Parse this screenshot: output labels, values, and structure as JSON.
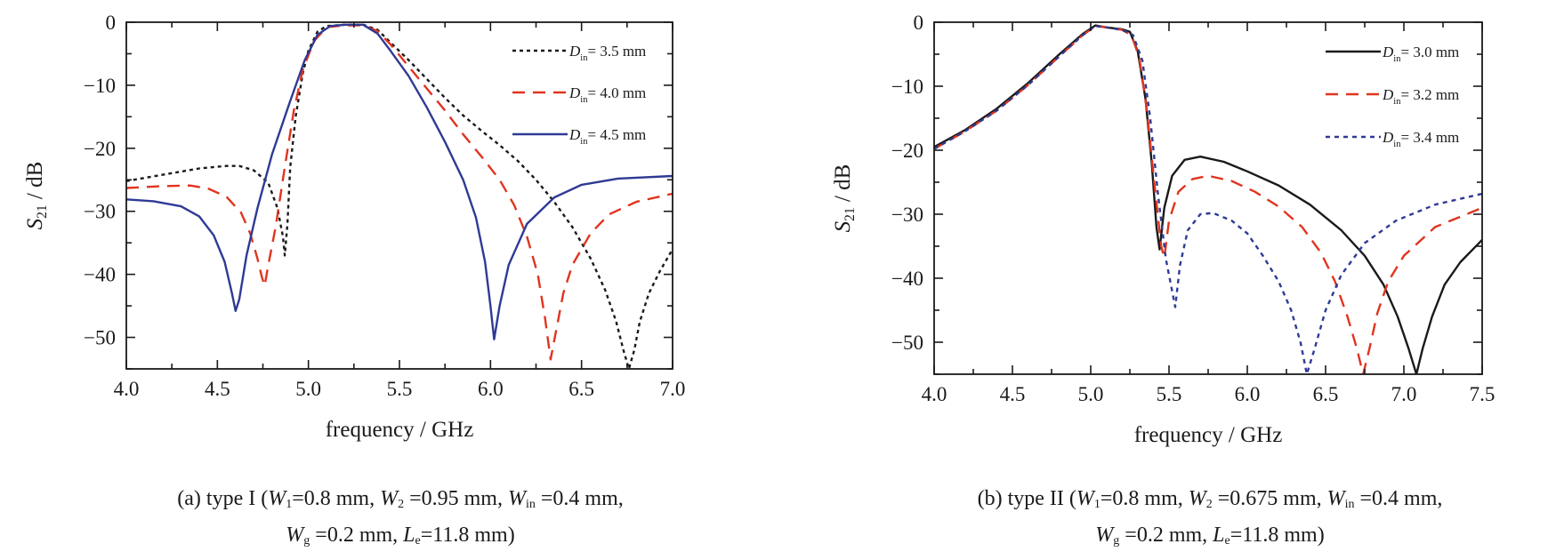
{
  "chart_data": [
    {
      "type": "line",
      "xlabel": "frequency / GHz",
      "ylabel": {
        "sym": "S",
        "sub": "21",
        "rest": " / dB"
      },
      "xlim": [
        4.0,
        7.0
      ],
      "ylim": [
        -55,
        0
      ],
      "xticks": [
        "4.0",
        "4.5",
        "5.0",
        "5.5",
        "6.0",
        "6.5",
        "7.0"
      ],
      "xtick_values": [
        4.0,
        4.5,
        5.0,
        5.5,
        6.0,
        6.5,
        7.0
      ],
      "yticks": [
        "0",
        "−10",
        "−20",
        "−30",
        "−40",
        "−50"
      ],
      "ytick_values": [
        0,
        -10,
        -20,
        -30,
        -40,
        -50
      ],
      "legend_position": "top-right",
      "series": [
        {
          "sym": "D",
          "sub": "in",
          "rest": "= 3.5 mm",
          "color": "#1a1a1a",
          "dash": "4,4",
          "points": [
            [
              4.0,
              -25.2
            ],
            [
              4.2,
              -24.2
            ],
            [
              4.4,
              -23.2
            ],
            [
              4.55,
              -22.8
            ],
            [
              4.62,
              -22.8
            ],
            [
              4.7,
              -23.5
            ],
            [
              4.78,
              -25.5
            ],
            [
              4.83,
              -29.5
            ],
            [
              4.86,
              -34
            ],
            [
              4.87,
              -37
            ],
            [
              4.885,
              -32
            ],
            [
              4.9,
              -23
            ],
            [
              4.93,
              -15
            ],
            [
              4.97,
              -8
            ],
            [
              5.0,
              -4.5
            ],
            [
              5.05,
              -1.5
            ],
            [
              5.1,
              -0.6
            ],
            [
              5.2,
              -0.4
            ],
            [
              5.3,
              -0.4
            ],
            [
              5.38,
              -1.2
            ],
            [
              5.45,
              -3.2
            ],
            [
              5.55,
              -6
            ],
            [
              5.65,
              -9
            ],
            [
              5.75,
              -12
            ],
            [
              5.85,
              -14.8
            ],
            [
              5.95,
              -17.2
            ],
            [
              6.05,
              -19.5
            ],
            [
              6.15,
              -22
            ],
            [
              6.25,
              -25
            ],
            [
              6.35,
              -28.5
            ],
            [
              6.45,
              -32.5
            ],
            [
              6.55,
              -37.5
            ],
            [
              6.63,
              -42.5
            ],
            [
              6.69,
              -47.5
            ],
            [
              6.73,
              -52
            ],
            [
              6.76,
              -55
            ],
            [
              6.79,
              -52
            ],
            [
              6.82,
              -47.5
            ],
            [
              6.87,
              -43
            ],
            [
              6.93,
              -39.5
            ],
            [
              7.0,
              -36
            ]
          ]
        },
        {
          "sym": "D",
          "sub": "in",
          "rest": "= 4.0 mm",
          "color": "#e0341f",
          "dash": "14,9",
          "points": [
            [
              4.0,
              -26.3
            ],
            [
              4.2,
              -26
            ],
            [
              4.35,
              -25.9
            ],
            [
              4.45,
              -26.4
            ],
            [
              4.55,
              -27.7
            ],
            [
              4.63,
              -30.2
            ],
            [
              4.68,
              -33.5
            ],
            [
              4.72,
              -37.5
            ],
            [
              4.745,
              -40.5
            ],
            [
              4.76,
              -41.8
            ],
            [
              4.78,
              -38.5
            ],
            [
              4.82,
              -32.5
            ],
            [
              4.87,
              -23
            ],
            [
              4.92,
              -14
            ],
            [
              4.97,
              -7.5
            ],
            [
              5.03,
              -3
            ],
            [
              5.1,
              -0.8
            ],
            [
              5.2,
              -0.5
            ],
            [
              5.3,
              -0.5
            ],
            [
              5.38,
              -1.4
            ],
            [
              5.45,
              -3.5
            ],
            [
              5.55,
              -7
            ],
            [
              5.65,
              -10.5
            ],
            [
              5.75,
              -14
            ],
            [
              5.85,
              -17.8
            ],
            [
              5.95,
              -21.3
            ],
            [
              6.05,
              -25
            ],
            [
              6.13,
              -29
            ],
            [
              6.2,
              -34
            ],
            [
              6.26,
              -40
            ],
            [
              6.3,
              -47
            ],
            [
              6.33,
              -53.5
            ],
            [
              6.36,
              -49
            ],
            [
              6.4,
              -43
            ],
            [
              6.45,
              -38.5
            ],
            [
              6.55,
              -33.5
            ],
            [
              6.65,
              -30.5
            ],
            [
              6.8,
              -28.5
            ],
            [
              7.0,
              -27.2
            ]
          ]
        },
        {
          "sym": "D",
          "sub": "in",
          "rest": "= 4.5 mm",
          "color": "#2f3a94",
          "dash": "",
          "points": [
            [
              4.0,
              -28.1
            ],
            [
              4.15,
              -28.4
            ],
            [
              4.3,
              -29.2
            ],
            [
              4.4,
              -30.8
            ],
            [
              4.48,
              -33.8
            ],
            [
              4.54,
              -38
            ],
            [
              4.58,
              -43
            ],
            [
              4.6,
              -45.8
            ],
            [
              4.62,
              -44
            ],
            [
              4.66,
              -37
            ],
            [
              4.72,
              -29.5
            ],
            [
              4.8,
              -21
            ],
            [
              4.9,
              -12.5
            ],
            [
              4.98,
              -6
            ],
            [
              5.05,
              -2
            ],
            [
              5.12,
              -0.6
            ],
            [
              5.2,
              -0.4
            ],
            [
              5.3,
              -0.4
            ],
            [
              5.38,
              -1.8
            ],
            [
              5.45,
              -4.5
            ],
            [
              5.55,
              -8.5
            ],
            [
              5.65,
              -13.5
            ],
            [
              5.75,
              -19
            ],
            [
              5.85,
              -25
            ],
            [
              5.92,
              -31
            ],
            [
              5.97,
              -38
            ],
            [
              6.0,
              -45
            ],
            [
              6.02,
              -50.3
            ],
            [
              6.05,
              -45
            ],
            [
              6.1,
              -38.5
            ],
            [
              6.2,
              -32
            ],
            [
              6.35,
              -27.8
            ],
            [
              6.5,
              -25.8
            ],
            [
              6.7,
              -24.8
            ],
            [
              7.0,
              -24.4
            ]
          ]
        }
      ]
    },
    {
      "type": "line",
      "xlabel": "frequency / GHz",
      "ylabel": {
        "sym": "S",
        "sub": "21",
        "rest": " / dB"
      },
      "xlim": [
        4.0,
        7.5
      ],
      "ylim": [
        -55,
        0
      ],
      "xticks": [
        "4.0",
        "4.5",
        "5.0",
        "5.5",
        "6.0",
        "6.5",
        "7.0",
        "7.5"
      ],
      "xtick_values": [
        4.0,
        4.5,
        5.0,
        5.5,
        6.0,
        6.5,
        7.0,
        7.5
      ],
      "yticks": [
        "0",
        "−10",
        "−20",
        "−30",
        "−40",
        "−50"
      ],
      "ytick_values": [
        0,
        -10,
        -20,
        -30,
        -40,
        -50
      ],
      "legend_position": "top-right",
      "series": [
        {
          "sym": "D",
          "sub": "in",
          "rest": "= 3.0 mm",
          "color": "#1a1a1a",
          "dash": "",
          "points": [
            [
              4.0,
              -19.5
            ],
            [
              4.2,
              -16.8
            ],
            [
              4.4,
              -13.5
            ],
            [
              4.6,
              -9.5
            ],
            [
              4.8,
              -5
            ],
            [
              4.95,
              -1.8
            ],
            [
              5.03,
              -0.5
            ],
            [
              5.1,
              -0.8
            ],
            [
              5.2,
              -1.1
            ],
            [
              5.25,
              -1.5
            ],
            [
              5.3,
              -4.5
            ],
            [
              5.35,
              -12
            ],
            [
              5.39,
              -22
            ],
            [
              5.42,
              -32
            ],
            [
              5.44,
              -35.5
            ],
            [
              5.47,
              -29
            ],
            [
              5.52,
              -24
            ],
            [
              5.6,
              -21.5
            ],
            [
              5.7,
              -21
            ],
            [
              5.85,
              -21.8
            ],
            [
              6.0,
              -23.3
            ],
            [
              6.2,
              -25.5
            ],
            [
              6.4,
              -28.5
            ],
            [
              6.6,
              -32.5
            ],
            [
              6.75,
              -36.5
            ],
            [
              6.87,
              -41
            ],
            [
              6.96,
              -46
            ],
            [
              7.03,
              -51
            ],
            [
              7.08,
              -55
            ],
            [
              7.12,
              -51
            ],
            [
              7.18,
              -46
            ],
            [
              7.26,
              -41
            ],
            [
              7.36,
              -37.5
            ],
            [
              7.5,
              -34
            ]
          ]
        },
        {
          "sym": "D",
          "sub": "in",
          "rest": "= 3.2 mm",
          "color": "#e0341f",
          "dash": "14,9",
          "points": [
            [
              4.0,
              -19.8
            ],
            [
              4.2,
              -17
            ],
            [
              4.4,
              -13.8
            ],
            [
              4.6,
              -9.8
            ],
            [
              4.8,
              -5.3
            ],
            [
              4.95,
              -2
            ],
            [
              5.03,
              -0.6
            ],
            [
              5.1,
              -0.8
            ],
            [
              5.2,
              -1.2
            ],
            [
              5.26,
              -2
            ],
            [
              5.31,
              -5.5
            ],
            [
              5.36,
              -14
            ],
            [
              5.41,
              -26
            ],
            [
              5.45,
              -35
            ],
            [
              5.47,
              -36.8
            ],
            [
              5.5,
              -31
            ],
            [
              5.56,
              -26.5
            ],
            [
              5.65,
              -24.5
            ],
            [
              5.75,
              -24
            ],
            [
              5.9,
              -24.8
            ],
            [
              6.05,
              -26.5
            ],
            [
              6.2,
              -28.8
            ],
            [
              6.35,
              -32
            ],
            [
              6.47,
              -36
            ],
            [
              6.56,
              -40.5
            ],
            [
              6.64,
              -46
            ],
            [
              6.7,
              -51
            ],
            [
              6.74,
              -55
            ],
            [
              6.78,
              -51
            ],
            [
              6.83,
              -45.5
            ],
            [
              6.9,
              -40.5
            ],
            [
              7.0,
              -36.5
            ],
            [
              7.2,
              -32
            ],
            [
              7.5,
              -29
            ]
          ]
        },
        {
          "sym": "D",
          "sub": "in",
          "rest": "= 3.4 mm",
          "color": "#2f3a94",
          "dash": "5,5",
          "points": [
            [
              4.0,
              -19.8
            ],
            [
              4.2,
              -17
            ],
            [
              4.4,
              -13.8
            ],
            [
              4.6,
              -9.8
            ],
            [
              4.8,
              -5.3
            ],
            [
              4.95,
              -2
            ],
            [
              5.03,
              -0.6
            ],
            [
              5.1,
              -0.8
            ],
            [
              5.2,
              -1.2
            ],
            [
              5.27,
              -2
            ],
            [
              5.33,
              -6
            ],
            [
              5.38,
              -15
            ],
            [
              5.43,
              -27
            ],
            [
              5.48,
              -37
            ],
            [
              5.52,
              -42
            ],
            [
              5.54,
              -44.5
            ],
            [
              5.57,
              -38
            ],
            [
              5.62,
              -32.5
            ],
            [
              5.7,
              -30
            ],
            [
              5.78,
              -29.8
            ],
            [
              5.9,
              -31
            ],
            [
              6.0,
              -33
            ],
            [
              6.1,
              -36.5
            ],
            [
              6.2,
              -40.5
            ],
            [
              6.28,
              -45
            ],
            [
              6.34,
              -50
            ],
            [
              6.38,
              -55
            ],
            [
              6.43,
              -51
            ],
            [
              6.5,
              -45
            ],
            [
              6.6,
              -39.5
            ],
            [
              6.75,
              -34.5
            ],
            [
              6.95,
              -31
            ],
            [
              7.2,
              -28.5
            ],
            [
              7.5,
              -26.8
            ]
          ]
        }
      ]
    }
  ],
  "captions": [
    {
      "line1": [
        {
          "t": "(a) type I ("
        },
        {
          "i": "W"
        },
        {
          "s": "1"
        },
        {
          "t": "=0.8 mm, "
        },
        {
          "i": "W"
        },
        {
          "s": "2"
        },
        {
          "t": " =0.95 mm, "
        },
        {
          "i": "W"
        },
        {
          "s": "in"
        },
        {
          "t": " =0.4 mm,"
        }
      ],
      "line2": [
        {
          "i": "W"
        },
        {
          "s": "g"
        },
        {
          "t": " =0.2 mm, "
        },
        {
          "i": "L"
        },
        {
          "s": "e"
        },
        {
          "t": "=11.8 mm)"
        }
      ]
    },
    {
      "line1": [
        {
          "t": "(b) type II ("
        },
        {
          "i": "W"
        },
        {
          "s": "1"
        },
        {
          "t": "=0.8 mm, "
        },
        {
          "i": "W"
        },
        {
          "s": "2"
        },
        {
          "t": " =0.675 mm, "
        },
        {
          "i": "W"
        },
        {
          "s": "in"
        },
        {
          "t": " =0.4 mm,"
        }
      ],
      "line2": [
        {
          "i": "W"
        },
        {
          "s": "g"
        },
        {
          "t": " =0.2 mm, "
        },
        {
          "i": "L"
        },
        {
          "s": "e"
        },
        {
          "t": "=11.8 mm)"
        }
      ]
    }
  ]
}
